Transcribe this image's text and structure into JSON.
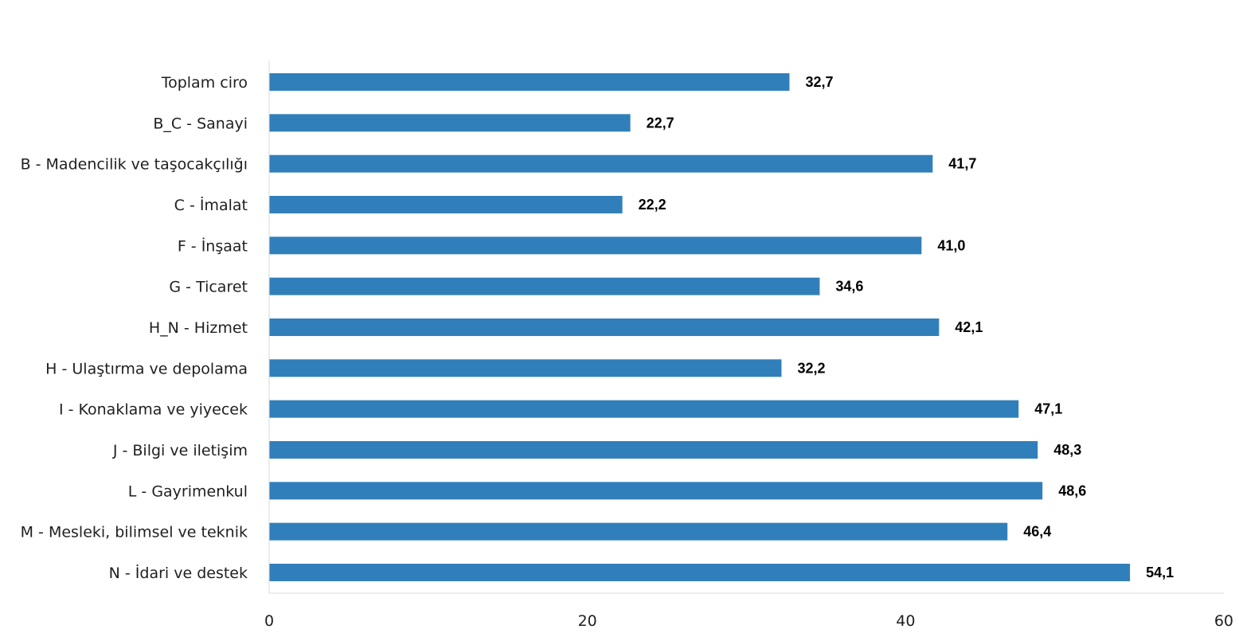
{
  "chart_data": {
    "type": "bar",
    "orientation": "horizontal",
    "categories": [
      "Toplam ciro",
      "B_C - Sanayi",
      "B - Madencilik ve taşocakçılığı",
      "C - İmalat",
      "F - İnşaat",
      "G - Ticaret",
      "H_N - Hizmet",
      "H - Ulaştırma ve depolama",
      "I - Konaklama ve yiyecek",
      "J - Bilgi ve iletişim",
      "L - Gayrimenkul",
      "M - Mesleki, bilimsel ve teknik",
      "N - İdari ve destek"
    ],
    "values": [
      32.7,
      22.7,
      41.7,
      22.2,
      41.0,
      34.6,
      42.1,
      32.2,
      47.1,
      48.3,
      48.6,
      46.4,
      54.1
    ],
    "value_labels": [
      "32,7",
      "22,7",
      "41,7",
      "22,2",
      "41,0",
      "34,6",
      "42,1",
      "32,2",
      "47,1",
      "48,3",
      "48,6",
      "46,4",
      "54,1"
    ],
    "xlim": [
      0,
      60
    ],
    "xticks": [
      0,
      20,
      40,
      60
    ],
    "xtick_labels": [
      "0",
      "20",
      "40",
      "60"
    ],
    "bar_color": "#317fba",
    "axis_color": "#d9d9d9",
    "grid": false,
    "legend": "none"
  }
}
